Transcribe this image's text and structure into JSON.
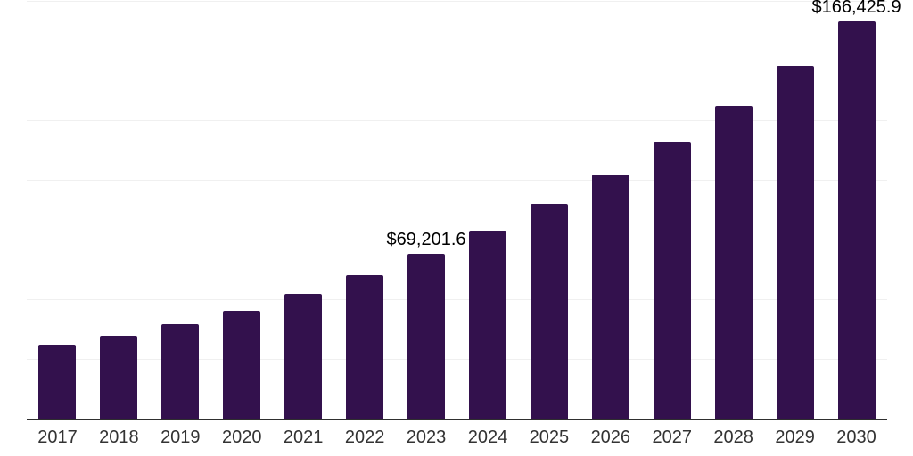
{
  "chart_data": {
    "type": "bar",
    "title": "",
    "xlabel": "",
    "ylabel": "",
    "categories": [
      "2017",
      "2018",
      "2019",
      "2020",
      "2021",
      "2022",
      "2023",
      "2024",
      "2025",
      "2026",
      "2027",
      "2028",
      "2029",
      "2030"
    ],
    "values": [
      31000,
      34700,
      39500,
      45100,
      52200,
      60100,
      69201.6,
      78900,
      90100,
      102300,
      115800,
      131000,
      147900,
      166425.9
    ],
    "data_labels": [
      "",
      "",
      "",
      "",
      "",
      "",
      "$69,201.6",
      "",
      "",
      "",
      "",
      "",
      "",
      "$166,425.9"
    ],
    "ylim": [
      0,
      175000
    ],
    "grid_interval": 25000,
    "grid": true,
    "legend": false,
    "colors": {
      "bar": "#33114d",
      "axis_line": "#2f2f2f",
      "gridline": "#f0f0f0",
      "data_label": "#000000",
      "tick_label": "#333333",
      "background": "#ffffff"
    }
  }
}
